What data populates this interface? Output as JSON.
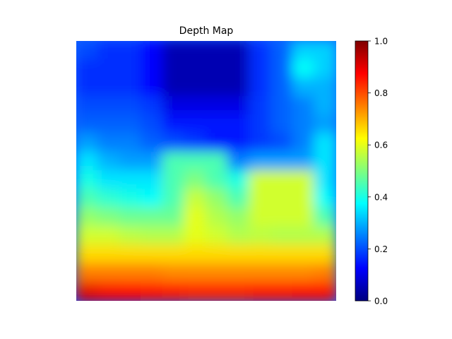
{
  "chart_data": {
    "type": "heatmap",
    "title": "Depth Map",
    "xlabel": "",
    "ylabel": "",
    "axes_visible": false,
    "grid": false,
    "colormap": "jet",
    "colorbar": {
      "location": "right",
      "range": [
        0.0,
        1.0
      ],
      "ticks": [
        0.0,
        0.2,
        0.4,
        0.6,
        0.8,
        1.0
      ],
      "tick_labels": [
        "0.0",
        "0.2",
        "0.4",
        "0.6",
        "0.8",
        "1.0"
      ]
    },
    "colormap_stops": [
      "#00007f",
      "#0000ff",
      "#007fff",
      "#00ffff",
      "#7fff7f",
      "#ffff00",
      "#ff7f00",
      "#ff0000",
      "#7f0000"
    ],
    "approx_depth_values": [
      [
        0.2,
        0.17,
        0.17,
        0.13,
        0.05,
        0.05,
        0.05,
        0.05,
        0.17,
        0.22,
        0.33,
        0.33
      ],
      [
        0.17,
        0.17,
        0.17,
        0.13,
        0.05,
        0.05,
        0.05,
        0.05,
        0.17,
        0.22,
        0.38,
        0.33
      ],
      [
        0.17,
        0.17,
        0.17,
        0.13,
        0.05,
        0.05,
        0.05,
        0.05,
        0.17,
        0.22,
        0.3,
        0.3
      ],
      [
        0.2,
        0.2,
        0.2,
        0.18,
        0.1,
        0.1,
        0.1,
        0.1,
        0.18,
        0.22,
        0.25,
        0.3
      ],
      [
        0.22,
        0.22,
        0.22,
        0.2,
        0.15,
        0.15,
        0.15,
        0.15,
        0.18,
        0.22,
        0.25,
        0.28
      ],
      [
        0.28,
        0.25,
        0.25,
        0.22,
        0.2,
        0.18,
        0.15,
        0.15,
        0.18,
        0.2,
        0.25,
        0.35
      ],
      [
        0.35,
        0.3,
        0.28,
        0.28,
        0.45,
        0.45,
        0.45,
        0.25,
        0.28,
        0.28,
        0.28,
        0.35
      ],
      [
        0.4,
        0.35,
        0.35,
        0.35,
        0.45,
        0.5,
        0.45,
        0.4,
        0.58,
        0.58,
        0.58,
        0.35
      ],
      [
        0.45,
        0.42,
        0.4,
        0.38,
        0.45,
        0.57,
        0.52,
        0.45,
        0.58,
        0.58,
        0.58,
        0.38
      ],
      [
        0.52,
        0.5,
        0.48,
        0.48,
        0.48,
        0.6,
        0.55,
        0.52,
        0.58,
        0.58,
        0.58,
        0.45
      ],
      [
        0.58,
        0.58,
        0.56,
        0.55,
        0.55,
        0.6,
        0.58,
        0.55,
        0.56,
        0.55,
        0.55,
        0.55
      ],
      [
        0.66,
        0.66,
        0.66,
        0.66,
        0.66,
        0.66,
        0.66,
        0.66,
        0.66,
        0.66,
        0.66,
        0.66
      ],
      [
        0.75,
        0.75,
        0.75,
        0.75,
        0.74,
        0.74,
        0.74,
        0.74,
        0.74,
        0.74,
        0.74,
        0.75
      ],
      [
        0.9,
        0.88,
        0.87,
        0.86,
        0.85,
        0.84,
        0.84,
        0.84,
        0.85,
        0.85,
        0.86,
        0.86
      ]
    ]
  }
}
